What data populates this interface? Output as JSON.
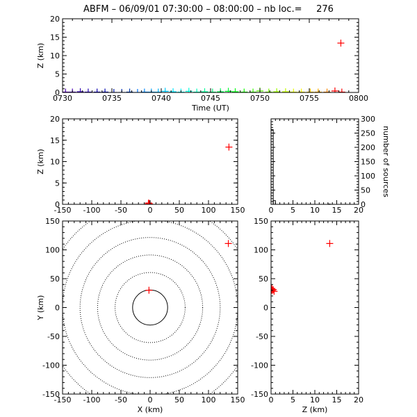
{
  "title": "ABFM – 06/09/01 07:30:00 – 08:00:00 – nb loc.=     276",
  "colors": {
    "axis": "#000000",
    "marker_red": "#ff0000",
    "histogram": "#000000",
    "range_rings": "#000000"
  },
  "chart_data": [
    {
      "id": "time-height",
      "type": "scatter",
      "xlabel": "Time (UT)",
      "ylabel": "Z (km)",
      "xlim": [
        0,
        30
      ],
      "ylim": [
        0,
        20
      ],
      "x_ticks": [
        0,
        5,
        10,
        15,
        20,
        25,
        30
      ],
      "x_tick_labels": [
        "0730",
        "0735",
        "0740",
        "0745",
        "0750",
        "0755",
        "0800"
      ],
      "y_ticks": [
        0,
        5,
        10,
        15,
        20
      ],
      "marker": "plus",
      "color_by_time": true,
      "points": [
        {
          "x": 0.3,
          "y": 0.1
        },
        {
          "x": 1.0,
          "y": 0.1
        },
        {
          "x": 1.8,
          "y": 0.2
        },
        {
          "x": 2.6,
          "y": 0.1
        },
        {
          "x": 3.5,
          "y": 0.1
        },
        {
          "x": 4.3,
          "y": 0.1
        },
        {
          "x": 5.2,
          "y": 0.0
        },
        {
          "x": 6.0,
          "y": 0.0
        },
        {
          "x": 6.8,
          "y": 0.1
        },
        {
          "x": 7.6,
          "y": 0.0
        },
        {
          "x": 8.3,
          "y": 0.1
        },
        {
          "x": 9.0,
          "y": 0.1
        },
        {
          "x": 9.7,
          "y": 0.1
        },
        {
          "x": 10.4,
          "y": 0.3
        },
        {
          "x": 11.2,
          "y": 0.2
        },
        {
          "x": 12.0,
          "y": 0.1
        },
        {
          "x": 12.8,
          "y": 0.3
        },
        {
          "x": 13.6,
          "y": 0.1
        },
        {
          "x": 14.4,
          "y": 0.2
        },
        {
          "x": 15.2,
          "y": 0.1
        },
        {
          "x": 16.0,
          "y": 0.2
        },
        {
          "x": 16.8,
          "y": 0.3
        },
        {
          "x": 17.5,
          "y": 0.2
        },
        {
          "x": 18.4,
          "y": 0.1
        },
        {
          "x": 19.3,
          "y": 0.1
        },
        {
          "x": 20.0,
          "y": 0.4
        },
        {
          "x": 20.9,
          "y": 0.1
        },
        {
          "x": 21.7,
          "y": 0.2
        },
        {
          "x": 22.6,
          "y": 0.2
        },
        {
          "x": 23.4,
          "y": 0.1
        },
        {
          "x": 24.2,
          "y": 0.1
        },
        {
          "x": 25.1,
          "y": 0.1
        },
        {
          "x": 25.9,
          "y": 0.1
        },
        {
          "x": 26.8,
          "y": 0.1
        },
        {
          "x": 27.6,
          "y": 0.4
        },
        {
          "x": 28.2,
          "y": 13.4
        },
        {
          "x": 28.3,
          "y": 0.1
        }
      ]
    },
    {
      "id": "x-z",
      "type": "scatter",
      "xlabel": "",
      "ylabel": "Z (km)",
      "xlim": [
        -150,
        150
      ],
      "ylim": [
        0,
        20
      ],
      "x_ticks": [
        -150,
        -100,
        -50,
        0,
        50,
        100,
        150
      ],
      "y_ticks": [
        0,
        5,
        10,
        15,
        20
      ],
      "marker": "plus",
      "points": [
        {
          "x": -3,
          "y": 0.1
        },
        {
          "x": -2,
          "y": 0.2
        },
        {
          "x": -1,
          "y": 0.0
        },
        {
          "x": -2.5,
          "y": 0.3
        },
        {
          "x": -1.5,
          "y": 0.1
        },
        {
          "x": 135,
          "y": 13.4
        }
      ]
    },
    {
      "id": "height-histogram",
      "type": "histogram",
      "xlabel": "",
      "ylabel": "number of sources",
      "xlim": [
        0,
        20
      ],
      "ylim": [
        0,
        300
      ],
      "x_ticks": [
        0,
        5,
        10,
        15,
        20
      ],
      "y_ticks": [
        0,
        50,
        100,
        150,
        200,
        250,
        300
      ],
      "bin_width": 0.5,
      "bins": [
        {
          "x": 0.0,
          "count": 262
        },
        {
          "x": 0.5,
          "count": 13
        },
        {
          "x": 1.0,
          "count": 0
        },
        {
          "x": 13.0,
          "count": 1
        }
      ]
    },
    {
      "id": "plan-view",
      "type": "scatter",
      "xlabel": "X (km)",
      "ylabel": "Y (km)",
      "xlim": [
        -150,
        150
      ],
      "ylim": [
        -150,
        150
      ],
      "x_ticks": [
        -150,
        -100,
        -50,
        0,
        50,
        100,
        150
      ],
      "y_ticks": [
        -150,
        -100,
        -50,
        0,
        50,
        100,
        150
      ],
      "range_rings_km": [
        30,
        60,
        90,
        120,
        150,
        180
      ],
      "marker": "plus",
      "points": [
        {
          "x": -2,
          "y": 30
        },
        {
          "x": 134,
          "y": 111
        }
      ]
    },
    {
      "id": "z-y",
      "type": "scatter",
      "xlabel": "Z (km)",
      "ylabel": "",
      "xlim": [
        0,
        20
      ],
      "ylim": [
        -150,
        150
      ],
      "x_ticks": [
        0,
        5,
        10,
        15,
        20
      ],
      "y_ticks": [
        -150,
        -100,
        -50,
        0,
        50,
        100,
        150
      ],
      "marker": "plus",
      "points": [
        {
          "x": 0.1,
          "y": 30
        },
        {
          "x": 0.3,
          "y": 30
        },
        {
          "x": 0.5,
          "y": 31
        },
        {
          "x": 0.7,
          "y": 28
        },
        {
          "x": 0.2,
          "y": 33
        },
        {
          "x": 13.4,
          "y": 111
        }
      ]
    }
  ]
}
